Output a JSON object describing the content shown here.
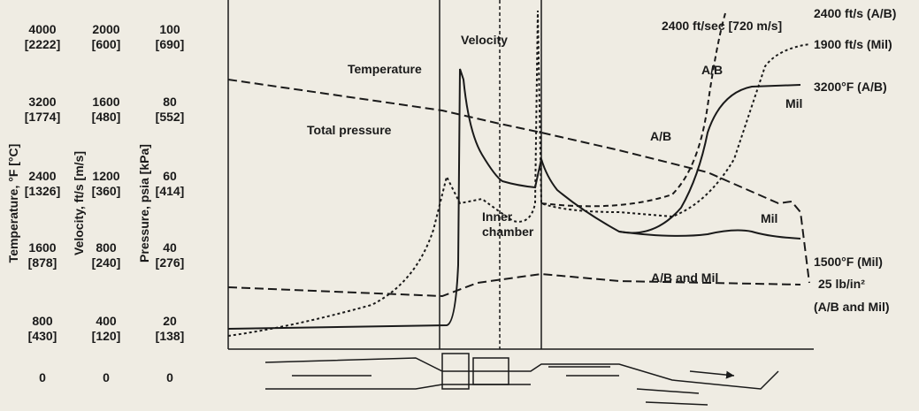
{
  "axes": [
    {
      "title": "Temperature, °F [°C]",
      "ticks": [
        [
          "4000",
          "[2222]"
        ],
        [
          "3200",
          "[1774]"
        ],
        [
          "2400",
          "[1326]"
        ],
        [
          "1600",
          "[878]"
        ],
        [
          "800",
          "[430]"
        ],
        [
          "0"
        ]
      ]
    },
    {
      "title": "Velocity, ft/s [m/s]",
      "ticks": [
        [
          "2000",
          "[600]"
        ],
        [
          "1600",
          "[480]"
        ],
        [
          "1200",
          "[360]"
        ],
        [
          "800",
          "[240]"
        ],
        [
          "400",
          "[120]"
        ],
        [
          "0"
        ]
      ]
    },
    {
      "title": "Pressure, psia [kPa]",
      "ticks": [
        [
          "100",
          "[690]"
        ],
        [
          "80",
          "[552]"
        ],
        [
          "60",
          "[414]"
        ],
        [
          "40",
          "[276]"
        ],
        [
          "20",
          "[138]"
        ],
        [
          "0"
        ]
      ]
    }
  ],
  "labels": {
    "velocity": "Velocity",
    "temperature": "Temperature",
    "total_pressure": "Total pressure",
    "inner_chamber": [
      "Inner",
      "chamber"
    ],
    "peak_velocity": "2400 ft/sec [720 m/s]",
    "ab_top": "A/B",
    "mil_top": "Mil",
    "ab_mid": "A/B",
    "mil_low": "Mil",
    "ab_and_mil": "A/B and Mil"
  },
  "right_labels": [
    "2400 ft/s (A/B)",
    "1900 ft/s (Mil)",
    "3200°F (A/B)",
    "1500°F (Mil)",
    "25 lb/in²",
    "(A/B and Mil)"
  ]
}
